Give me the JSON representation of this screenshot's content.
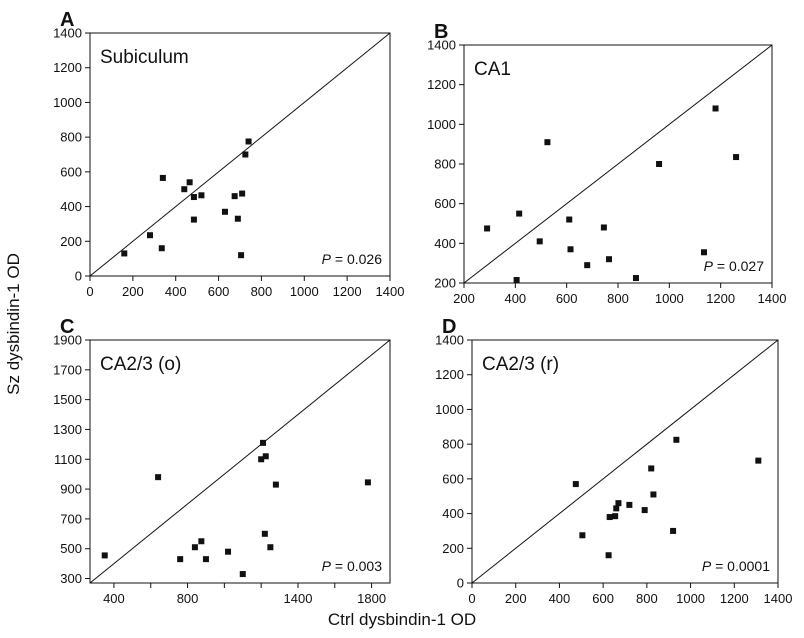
{
  "figure": {
    "ylabel": "Sz dysbindin-1 OD",
    "xlabel": "Ctrl dysbindin-1 OD"
  },
  "colors": {
    "ink": "#111111",
    "axis": "#333333"
  },
  "chart_data": [
    {
      "type": "scatter",
      "letter": "A",
      "title": "Subiculum",
      "p_value": "P = 0.026",
      "xlim": [
        0,
        1400
      ],
      "ylim": [
        0,
        1400
      ],
      "xticks": [
        0,
        200,
        400,
        600,
        800,
        1000,
        1200,
        1400
      ],
      "yticks": [
        0,
        200,
        400,
        600,
        800,
        1000,
        1200,
        1400
      ],
      "identity_line": true,
      "points": [
        [
          160,
          130
        ],
        [
          280,
          235
        ],
        [
          335,
          160
        ],
        [
          340,
          565
        ],
        [
          440,
          500
        ],
        [
          465,
          540
        ],
        [
          485,
          325
        ],
        [
          485,
          455
        ],
        [
          520,
          465
        ],
        [
          630,
          370
        ],
        [
          675,
          460
        ],
        [
          690,
          330
        ],
        [
          705,
          120
        ],
        [
          710,
          475
        ],
        [
          725,
          700
        ],
        [
          740,
          775
        ]
      ]
    },
    {
      "type": "scatter",
      "letter": "B",
      "title": "CA1",
      "p_value": "P = 0.027",
      "xlim": [
        200,
        1400
      ],
      "ylim": [
        200,
        1400
      ],
      "xticks": [
        200,
        400,
        600,
        800,
        1000,
        1200,
        1400
      ],
      "yticks": [
        200,
        400,
        600,
        800,
        1000,
        1200,
        1400
      ],
      "identity_line": true,
      "points": [
        [
          290,
          475
        ],
        [
          405,
          215
        ],
        [
          415,
          550
        ],
        [
          495,
          410
        ],
        [
          525,
          910
        ],
        [
          610,
          520
        ],
        [
          615,
          370
        ],
        [
          680,
          290
        ],
        [
          745,
          480
        ],
        [
          765,
          320
        ],
        [
          870,
          225
        ],
        [
          960,
          800
        ],
        [
          1135,
          355
        ],
        [
          1180,
          1080
        ],
        [
          1260,
          835
        ]
      ]
    },
    {
      "type": "scatter",
      "letter": "C",
      "title": "CA2/3 (o)",
      "p_value": "P = 0.003",
      "xlim": [
        270,
        1900
      ],
      "ylim": [
        270,
        1900
      ],
      "xticks": [
        400,
        600,
        800,
        1000,
        1200,
        1400,
        1600,
        1800
      ],
      "xtick_labels": [
        "400",
        "",
        "800",
        "",
        "",
        "1400",
        "",
        "1800"
      ],
      "yticks": [
        300,
        500,
        700,
        900,
        1100,
        1300,
        1500,
        1700,
        1900
      ],
      "identity_line": true,
      "points": [
        [
          350,
          455
        ],
        [
          640,
          980
        ],
        [
          760,
          430
        ],
        [
          840,
          510
        ],
        [
          875,
          550
        ],
        [
          900,
          430
        ],
        [
          1020,
          480
        ],
        [
          1100,
          330
        ],
        [
          1200,
          1100
        ],
        [
          1210,
          1210
        ],
        [
          1220,
          600
        ],
        [
          1225,
          1120
        ],
        [
          1250,
          510
        ],
        [
          1280,
          930
        ],
        [
          1780,
          945
        ]
      ]
    },
    {
      "type": "scatter",
      "letter": "D",
      "title": "CA2/3 (r)",
      "p_value": "P = 0.0001",
      "xlim": [
        0,
        1400
      ],
      "ylim": [
        0,
        1400
      ],
      "xticks": [
        0,
        200,
        400,
        600,
        800,
        1000,
        1200,
        1400
      ],
      "yticks": [
        0,
        200,
        400,
        600,
        800,
        1000,
        1200,
        1400
      ],
      "identity_line": true,
      "points": [
        [
          475,
          570
        ],
        [
          505,
          275
        ],
        [
          625,
          160
        ],
        [
          630,
          380
        ],
        [
          655,
          385
        ],
        [
          660,
          430
        ],
        [
          670,
          460
        ],
        [
          720,
          450
        ],
        [
          790,
          420
        ],
        [
          820,
          660
        ],
        [
          830,
          510
        ],
        [
          920,
          300
        ],
        [
          935,
          825
        ],
        [
          1310,
          705
        ]
      ]
    }
  ]
}
